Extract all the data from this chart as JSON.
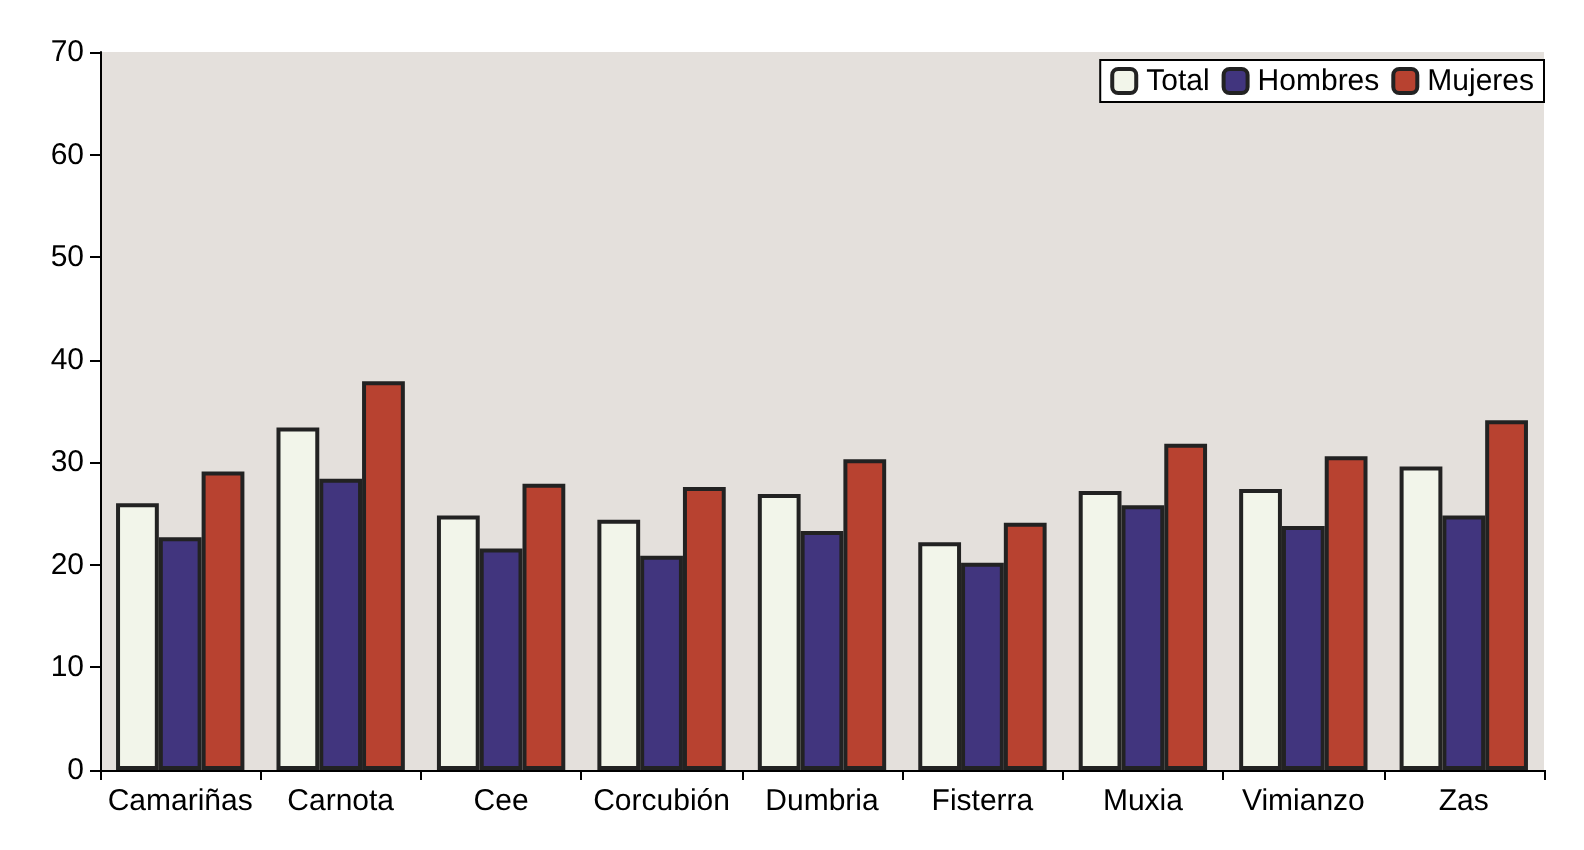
{
  "chart_data": {
    "type": "bar",
    "categories": [
      "Camariñas",
      "Carnota",
      "Cee",
      "Corcubión",
      "Dumbria",
      "Fisterra",
      "Muxia",
      "Vimianzo",
      "Zas"
    ],
    "series": [
      {
        "name": "Total",
        "color": "#f2f5ea",
        "values": [
          26,
          33.4,
          24.8,
          24.4,
          26.9,
          22.2,
          27.2,
          27.4,
          29.6
        ]
      },
      {
        "name": "Hombres",
        "color": "#41357e",
        "values": [
          22.7,
          28.4,
          21.6,
          20.9,
          23.3,
          20.2,
          25.8,
          23.8,
          24.8
        ]
      },
      {
        "name": "Mujeres",
        "color": "#b84230",
        "values": [
          29.1,
          37.9,
          27.9,
          27.6,
          30.3,
          24.1,
          31.8,
          30.6,
          34.1
        ]
      }
    ],
    "ylim": [
      0,
      70
    ],
    "yticks": [
      0,
      10,
      20,
      30,
      40,
      50,
      60,
      70
    ],
    "grid": false,
    "legend": "top right"
  }
}
